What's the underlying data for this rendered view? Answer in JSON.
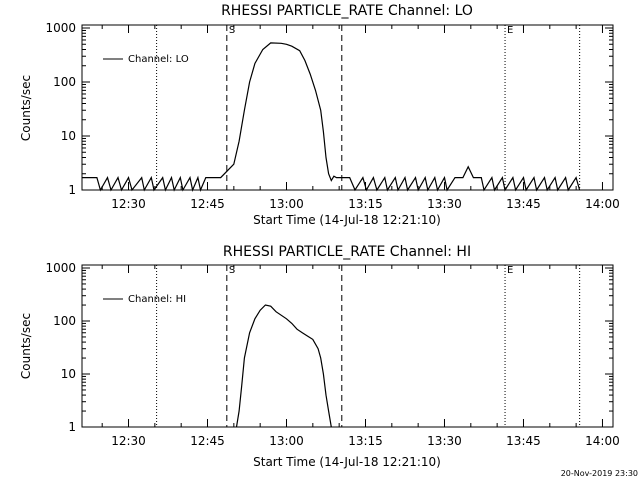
{
  "footer": {
    "timestamp": "20-Nov-2019 23:30"
  },
  "chart_data": [
    {
      "type": "line",
      "title": "RHESSI PARTICLE_RATE Channel: LO",
      "xlabel": "Start Time (14-Jul-18 12:21:10)",
      "ylabel": "Counts/sec",
      "x_tick_labels": [
        "12:30",
        "12:45",
        "13:00",
        "13:15",
        "13:30",
        "13:45",
        "14:00"
      ],
      "y_tick_labels": [
        "1",
        "10",
        "100",
        "1000"
      ],
      "xlim": [
        "12:21:10",
        "14:02:00"
      ],
      "ylim": [
        1,
        1000
      ],
      "yscale": "log",
      "legend": {
        "placement": "top-left",
        "entries": [
          "Channel: LO"
        ]
      },
      "markers": [
        {
          "label": "S",
          "time": "12:48:40",
          "style": "dashed"
        },
        {
          "label": "",
          "time": "13:10:30",
          "style": "dashed"
        },
        {
          "label": "",
          "time": "12:35:20",
          "style": "dotted"
        },
        {
          "label": "E",
          "time": "13:41:30",
          "style": "dotted"
        },
        {
          "label": "",
          "time": "13:55:40",
          "style": "dotted"
        }
      ],
      "series": [
        {
          "name": "Channel: LO",
          "x": [
            "12:21:10",
            "12:24:00",
            "12:24:40",
            "12:26:00",
            "12:26:40",
            "12:28:00",
            "12:28:40",
            "12:30:00",
            "12:30:40",
            "12:32:30",
            "12:33:00",
            "12:34:20",
            "12:34:50",
            "12:36:30",
            "12:37:00",
            "12:38:10",
            "12:38:40",
            "12:39:50",
            "12:40:20",
            "12:41:40",
            "12:42:10",
            "12:43:10",
            "12:43:40",
            "12:44:40",
            "12:45:20",
            "12:47:30",
            "12:50:00",
            "12:51:00",
            "12:52:00",
            "12:53:00",
            "12:54:00",
            "12:55:30",
            "12:57:00",
            "12:59:00",
            "13:00:00",
            "13:01:00",
            "13:02:30",
            "13:03:30",
            "13:04:30",
            "13:05:30",
            "13:06:30",
            "13:07:00",
            "13:07:30",
            "13:08:00",
            "13:08:30",
            "13:09:00",
            "13:09:30",
            "13:10:30",
            "13:12:00",
            "13:13:00",
            "13:14:30",
            "13:15:10",
            "13:16:30",
            "13:17:10",
            "13:18:40",
            "13:19:10",
            "13:20:40",
            "13:21:10",
            "13:22:30",
            "13:23:00",
            "13:24:30",
            "13:25:00",
            "13:26:20",
            "13:26:50",
            "13:28:10",
            "13:28:40",
            "13:30:00",
            "13:30:30",
            "13:32:00",
            "13:32:30",
            "13:33:30",
            "13:34:30",
            "13:35:30",
            "13:37:00",
            "13:37:30",
            "13:39:00",
            "13:39:30",
            "13:41:00",
            "13:41:30",
            "13:43:00",
            "13:43:30",
            "13:45:00",
            "13:45:30",
            "13:47:00",
            "13:47:30",
            "13:49:00",
            "13:49:30",
            "13:51:00",
            "13:51:30",
            "13:53:00",
            "13:53:30",
            "13:55:00",
            "13:55:40"
          ],
          "y": [
            1.7,
            1.7,
            1,
            1.7,
            1,
            1.7,
            1,
            1.7,
            1,
            1.7,
            1,
            1.7,
            1,
            1.7,
            1,
            1.7,
            1,
            1.7,
            1,
            1.7,
            1,
            1.7,
            1,
            1.7,
            1.7,
            1.7,
            3,
            8,
            30,
            100,
            220,
            400,
            530,
            520,
            500,
            460,
            380,
            250,
            140,
            70,
            30,
            12,
            4,
            2,
            1.5,
            1.8,
            1.7,
            1.7,
            1.7,
            1,
            1.7,
            1,
            1.7,
            1,
            1.7,
            1,
            1.7,
            1,
            1.7,
            1,
            1.7,
            1,
            1.7,
            1,
            1.7,
            1,
            1.7,
            1,
            1.7,
            1.7,
            1.7,
            2.7,
            1.7,
            1.7,
            1,
            1.7,
            1,
            1.7,
            1,
            1.7,
            1,
            1.7,
            1,
            1.7,
            1,
            1.7,
            1,
            1.7,
            1,
            1.7,
            1,
            1.7,
            1
          ]
        }
      ]
    },
    {
      "type": "line",
      "title": "RHESSI PARTICLE_RATE Channel: HI",
      "xlabel": "Start Time (14-Jul-18 12:21:10)",
      "ylabel": "Counts/sec",
      "x_tick_labels": [
        "12:30",
        "12:45",
        "13:00",
        "13:15",
        "13:30",
        "13:45",
        "14:00"
      ],
      "y_tick_labels": [
        "1",
        "10",
        "100",
        "1000"
      ],
      "xlim": [
        "12:21:10",
        "14:02:00"
      ],
      "ylim": [
        1,
        1000
      ],
      "yscale": "log",
      "legend": {
        "placement": "top-left",
        "entries": [
          "Channel: HI"
        ]
      },
      "markers": [
        {
          "label": "S",
          "time": "12:48:40",
          "style": "dashed"
        },
        {
          "label": "",
          "time": "13:10:30",
          "style": "dashed"
        },
        {
          "label": "",
          "time": "12:35:20",
          "style": "dotted"
        },
        {
          "label": "E",
          "time": "13:41:30",
          "style": "dotted"
        },
        {
          "label": "",
          "time": "13:55:40",
          "style": "dotted"
        }
      ],
      "series": [
        {
          "name": "Channel: HI",
          "x": [
            "12:50:30",
            "12:51:00",
            "12:51:30",
            "12:52:00",
            "12:53:00",
            "12:54:00",
            "12:55:00",
            "12:56:00",
            "12:57:00",
            "12:58:00",
            "13:00:00",
            "13:01:00",
            "13:02:00",
            "13:03:00",
            "13:04:00",
            "13:05:00",
            "13:06:00",
            "13:06:30",
            "13:07:00",
            "13:07:30",
            "13:08:00",
            "13:08:30"
          ],
          "y": [
            1,
            2,
            6,
            20,
            60,
            110,
            160,
            200,
            190,
            150,
            110,
            90,
            70,
            60,
            52,
            45,
            30,
            20,
            10,
            4,
            2,
            1
          ]
        }
      ]
    }
  ]
}
